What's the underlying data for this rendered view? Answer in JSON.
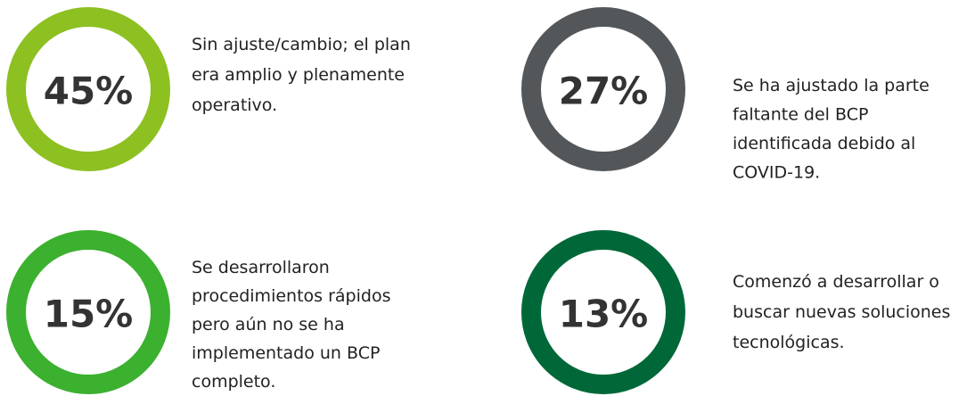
{
  "items": [
    {
      "label": "45%",
      "color": "#8dc021",
      "lines": [
        "Sin ajuste/cambio; el plan",
        "era amplio y plenamente",
        "operativo."
      ]
    },
    {
      "label": "27%",
      "color": "#54575a",
      "lines": [
        "Se ha ajustado la parte",
        "faltante del BCP",
        "identificada debido al",
        "COVID-19."
      ]
    },
    {
      "label": "15%",
      "color": "#3cb02f",
      "lines": [
        "Se desarrollaron",
        "procedimientos rápidos",
        "pero aún no se ha",
        "implementado un BCP",
        "completo."
      ]
    },
    {
      "label": "13%",
      "color": "#006838",
      "lines": [
        "Comenzó a desarrollar o",
        "buscar nuevas soluciones",
        "tecnológicas."
      ]
    }
  ]
}
